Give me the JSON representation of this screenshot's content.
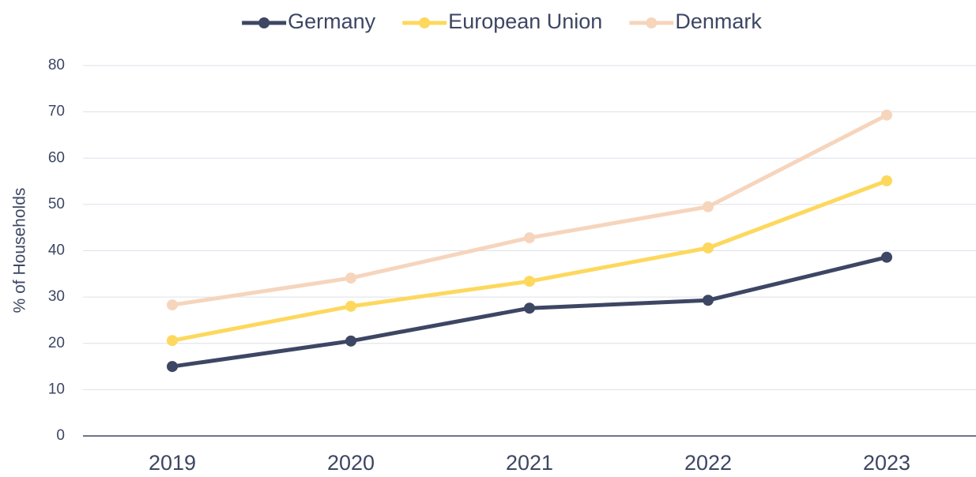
{
  "chart_data": {
    "type": "line",
    "y_label": "% of Households",
    "categories": [
      "2019",
      "2020",
      "2021",
      "2022",
      "2023"
    ],
    "series": [
      {
        "name": "Germany",
        "color": "#3d4663",
        "values": [
          15.0,
          20.5,
          27.6,
          29.3,
          38.6
        ]
      },
      {
        "name": "European Union",
        "color": "#fdd85d",
        "values": [
          20.6,
          28.0,
          33.4,
          40.6,
          55.1
        ]
      },
      {
        "name": "Denmark",
        "color": "#f6d5bd",
        "values": [
          28.3,
          34.1,
          42.8,
          49.5,
          69.3
        ]
      }
    ],
    "ylim": [
      0,
      80
    ],
    "yticks": [
      0,
      10,
      20,
      30,
      40,
      50,
      60,
      70,
      80
    ],
    "grid": true,
    "legend": "top"
  }
}
